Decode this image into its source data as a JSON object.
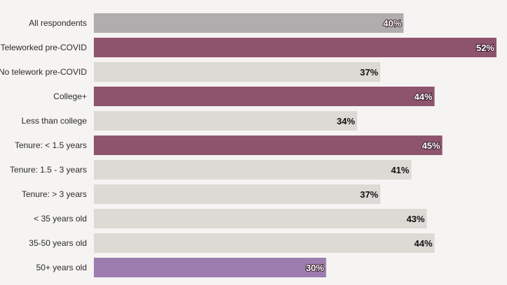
{
  "chart_data": {
    "type": "bar",
    "orientation": "horizontal",
    "categories": [
      "All respondents",
      "Teleworked pre-COVID",
      "No telework pre-COVID",
      "College+",
      "Less than college",
      "Tenure: < 1.5 years",
      "Tenure: 1.5 - 3 years",
      "Tenure: > 3 years",
      "< 35 years old",
      "35-50 years old",
      "50+ years old"
    ],
    "values": [
      40,
      52,
      37,
      44,
      34,
      45,
      41,
      37,
      43,
      44,
      30
    ],
    "value_labels": [
      "40%",
      "52%",
      "37%",
      "44%",
      "34%",
      "45%",
      "41%",
      "37%",
      "43%",
      "44%",
      "30%"
    ],
    "value_unit": "%",
    "xlim": [
      0,
      52
    ],
    "title": "",
    "xlabel": "",
    "ylabel": "",
    "grid": false,
    "legend": "none",
    "bar_colors": [
      "#afadad",
      "#8f546d",
      "#dcdad4",
      "#8f546d",
      "#dcdad4",
      "#8f546d",
      "#dcdad4",
      "#dcdad4",
      "#dcdad4",
      "#dcdad4",
      "#9d7caf"
    ],
    "label_styles": [
      "light",
      "light",
      "dark",
      "light",
      "dark",
      "light",
      "dark",
      "dark",
      "dark",
      "dark",
      "light"
    ]
  }
}
